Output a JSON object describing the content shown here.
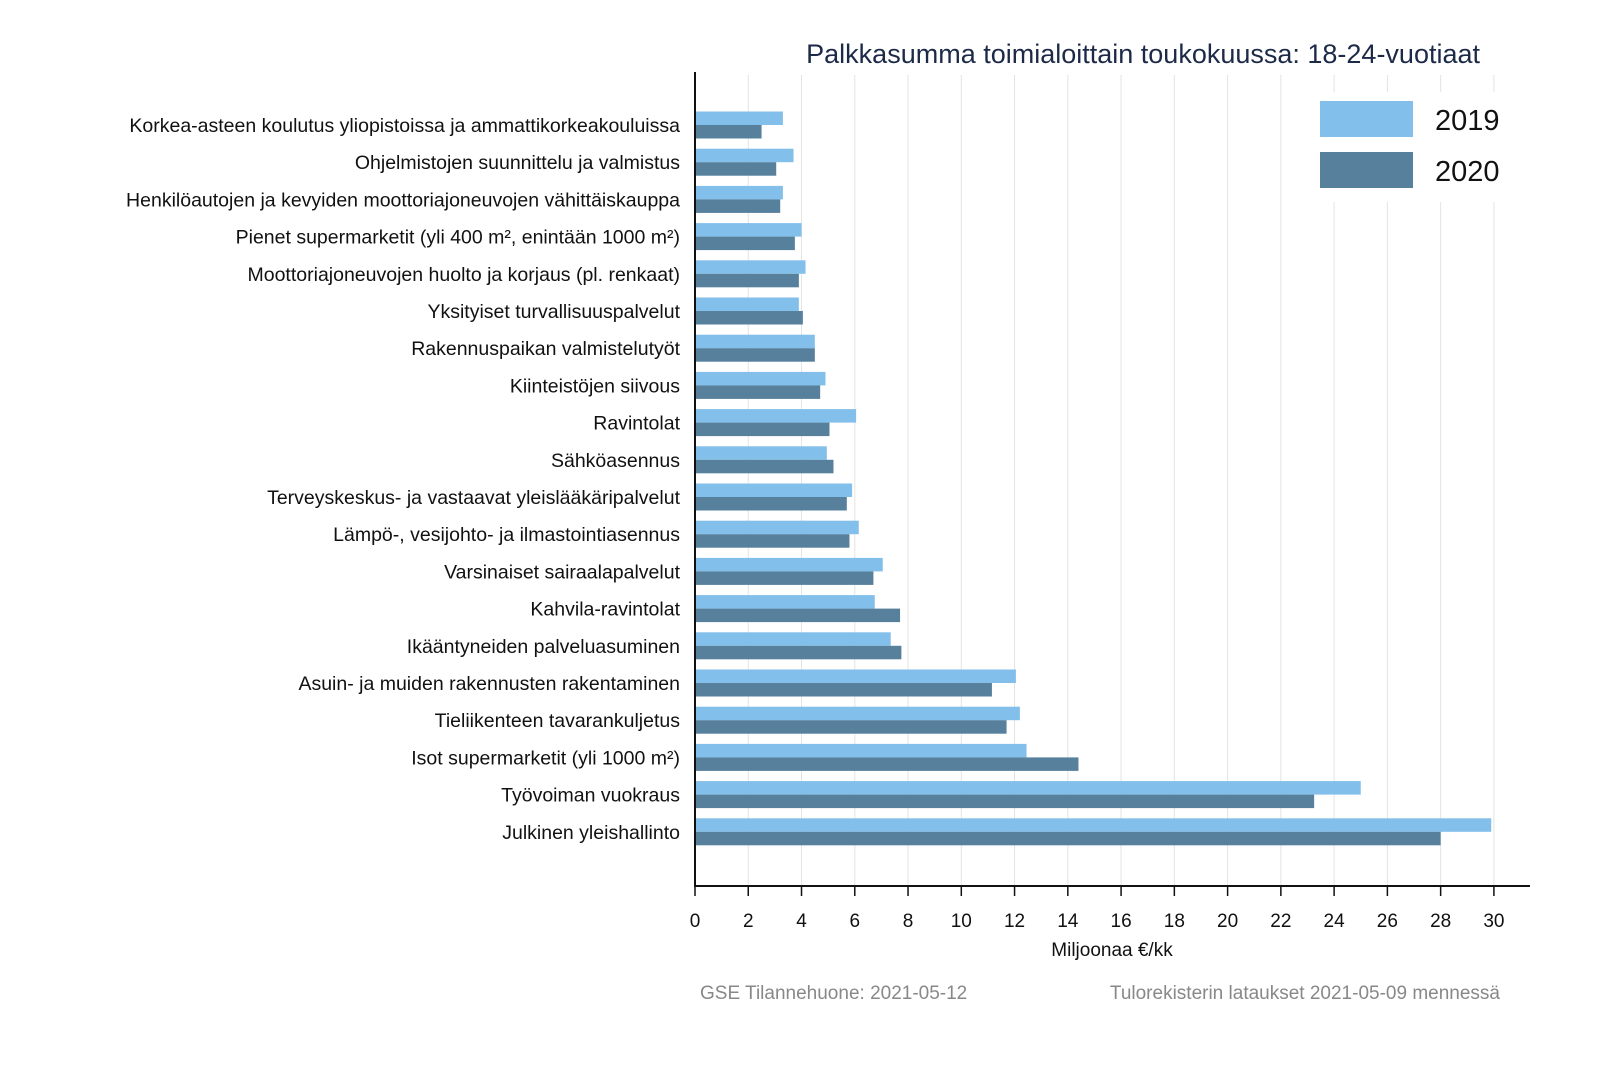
{
  "chart_data": {
    "type": "bar",
    "orientation": "horizontal",
    "title": "Palkkasumma toimialoittain toukokuussa: 18-24-vuotiaat",
    "xlabel": "Miljoonaa €/kk",
    "ylabel": "",
    "xlim": [
      0,
      31.5
    ],
    "xticks": [
      0,
      2,
      4,
      6,
      8,
      10,
      12,
      14,
      16,
      18,
      20,
      22,
      24,
      26,
      28,
      30
    ],
    "grid": "vertical",
    "legend_position": "top-right",
    "categories": [
      "Korkea-asteen koulutus yliopistoissa ja ammattikorkeakouluissa",
      "Ohjelmistojen suunnittelu ja valmistus",
      "Henkilöautojen ja kevyiden moottoriajoneuvojen vähittäiskauppa",
      "Pienet supermarketit (yli 400 m², enintään 1000 m²)",
      "Moottoriajoneuvojen huolto ja korjaus (pl. renkaat)",
      "Yksityiset turvallisuuspalvelut",
      "Rakennuspaikan valmistelutyöt",
      "Kiinteistöjen siivous",
      "Ravintolat",
      "Sähköasennus",
      "Terveyskeskus- ja vastaavat yleislääkäripalvelut",
      "Lämpö-, vesijohto- ja ilmastointiasennus",
      "Varsinaiset sairaalapalvelut",
      "Kahvila-ravintolat",
      "Ikääntyneiden palveluasuminen",
      "Asuin- ja muiden rakennusten rakentaminen",
      "Tieliikenteen tavarankuljetus",
      "Isot supermarketit (yli 1000 m²)",
      "Työvoiman vuokraus",
      "Julkinen yleishallinto"
    ],
    "series": [
      {
        "name": "2019",
        "color": "#82bfea",
        "values": [
          3.3,
          3.7,
          3.3,
          4.0,
          4.15,
          3.9,
          4.5,
          4.9,
          6.05,
          4.95,
          5.9,
          6.15,
          7.05,
          6.75,
          7.35,
          12.05,
          12.2,
          12.45,
          25.0,
          29.9
        ]
      },
      {
        "name": "2020",
        "color": "#56809c",
        "values": [
          2.5,
          3.05,
          3.2,
          3.75,
          3.9,
          4.05,
          4.5,
          4.7,
          5.05,
          5.2,
          5.7,
          5.8,
          6.7,
          7.7,
          7.75,
          11.15,
          11.7,
          14.4,
          23.25,
          28.0
        ]
      }
    ]
  },
  "footer": {
    "left": "GSE Tilannehuone: 2021-05-12",
    "right": "Tulorekisterin lataukset 2021-05-09 mennessä"
  }
}
